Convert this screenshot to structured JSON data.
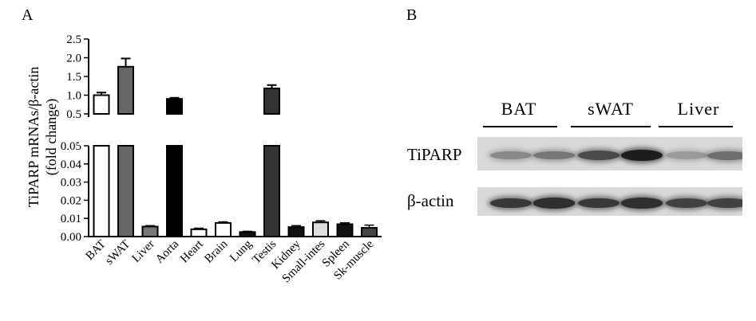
{
  "panels": {
    "a": "A",
    "b": "B"
  },
  "chart_data": {
    "type": "bar",
    "ylabel_line1": "TiPARP mRNAs/β-actin",
    "ylabel_line2": "(fold change)",
    "broken_axis": true,
    "lower_ylim": [
      0,
      0.05
    ],
    "lower_ticks": [
      "0.00",
      "0.01",
      "0.02",
      "0.03",
      "0.04",
      "0.05"
    ],
    "upper_ylim": [
      0.5,
      2.5
    ],
    "upper_ticks": [
      "0.5",
      "1.0",
      "1.5",
      "2.0",
      "2.5"
    ],
    "categories": [
      "BAT",
      "sWAT",
      "Liver",
      "Aorta",
      "Heart",
      "Brain",
      "Lung",
      "Testis",
      "Kidney",
      "Small-intes",
      "Spleen",
      "Sk-muscle"
    ],
    "values": [
      1.0,
      1.76,
      0.0055,
      0.9,
      0.004,
      0.0075,
      0.0025,
      1.18,
      0.0052,
      0.0078,
      0.0068,
      0.0048
    ],
    "errors": [
      0.07,
      0.22,
      0.0005,
      0.03,
      0.0006,
      0.0006,
      0.0004,
      0.09,
      0.0008,
      0.0009,
      0.0008,
      0.0015
    ],
    "fills": [
      "#ffffff",
      "#666666",
      "#777777",
      "#000000",
      "#ffffff",
      "#ffffff",
      "#111111",
      "#333333",
      "#111111",
      "#dddddd",
      "#111111",
      "#444444"
    ],
    "grid": false
  },
  "blot": {
    "groups": [
      "BAT",
      "sWAT",
      "Liver"
    ],
    "rows": [
      {
        "label": "TiPARP",
        "lane_intensity": [
          0.35,
          0.45,
          0.7,
          0.95,
          0.25,
          0.5
        ]
      },
      {
        "label": "β-actin",
        "lane_intensity": [
          0.8,
          0.85,
          0.8,
          0.85,
          0.75,
          0.75
        ]
      }
    ]
  }
}
